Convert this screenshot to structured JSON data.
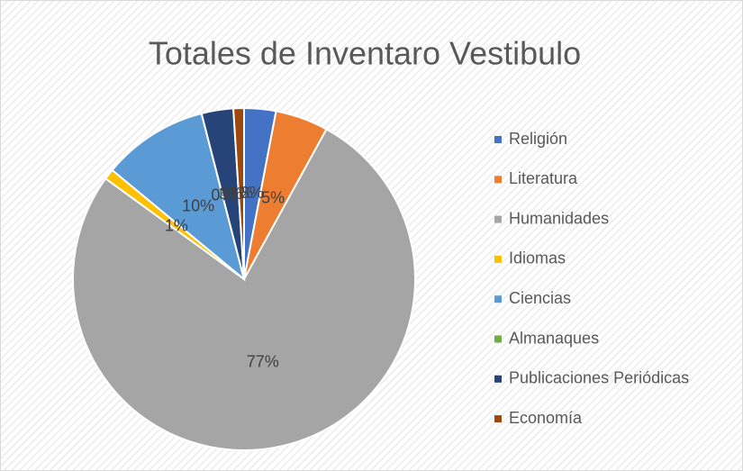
{
  "chart_data": {
    "type": "pie",
    "title": "Totales de Inventaro Vestibulo",
    "categories": [
      "Religión",
      "Literatura",
      "Humanidades",
      "Idiomas",
      "Ciencias",
      "Almanaques",
      "Publicaciones Periódicas",
      "Economía"
    ],
    "values": [
      3,
      5,
      77,
      1,
      10,
      0,
      3,
      1
    ],
    "value_labels": [
      "3%",
      "5%",
      "77%",
      "1%",
      "10%",
      "0%",
      "3%",
      "1%"
    ],
    "colors": [
      "#4472c4",
      "#ed7d31",
      "#a5a5a5",
      "#ffc000",
      "#5b9bd5",
      "#70ad47",
      "#264478",
      "#9e480e"
    ],
    "legend": "right"
  }
}
